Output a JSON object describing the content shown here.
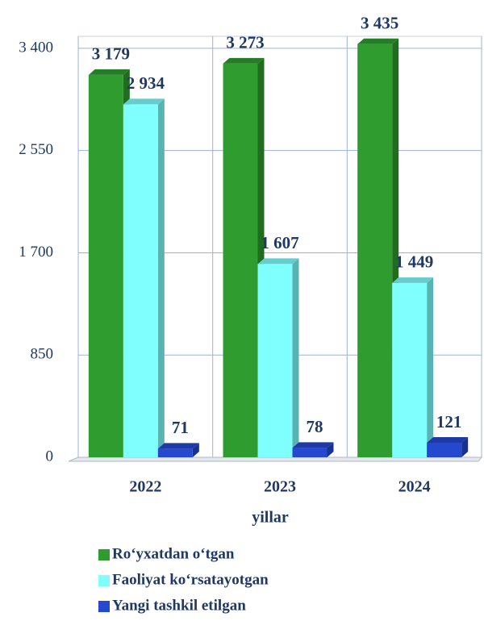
{
  "chart_data": {
    "type": "bar3d",
    "x_label": "yillar",
    "categories": [
      "2022",
      "2023",
      "2024"
    ],
    "series": [
      {
        "name": "Ro‘yxatdan o‘tgan",
        "color": "#2e9c2e",
        "values": [
          3179,
          3273,
          3435
        ],
        "value_labels": [
          "3 179",
          "3 273",
          "3 435"
        ]
      },
      {
        "name": "Faoliyat ko‘rsatayotgan",
        "color": "#80ffff",
        "values": [
          2934,
          1607,
          1449
        ],
        "value_labels": [
          "2 934",
          "1 607",
          "1 449"
        ]
      },
      {
        "name": "Yangi tashkil etilgan",
        "color": "#2448d0",
        "values": [
          71,
          78,
          121
        ],
        "value_labels": [
          "71",
          "78",
          "121"
        ]
      }
    ],
    "ylim": [
      0,
      3500
    ],
    "yticks": [
      0,
      850,
      {
        "value": 1700,
        "label": "1 700"
      },
      {
        "value": 2550,
        "label": "2 550"
      },
      {
        "value": 3400,
        "label": "3 400"
      }
    ],
    "grid": true,
    "legend": "bottom"
  }
}
